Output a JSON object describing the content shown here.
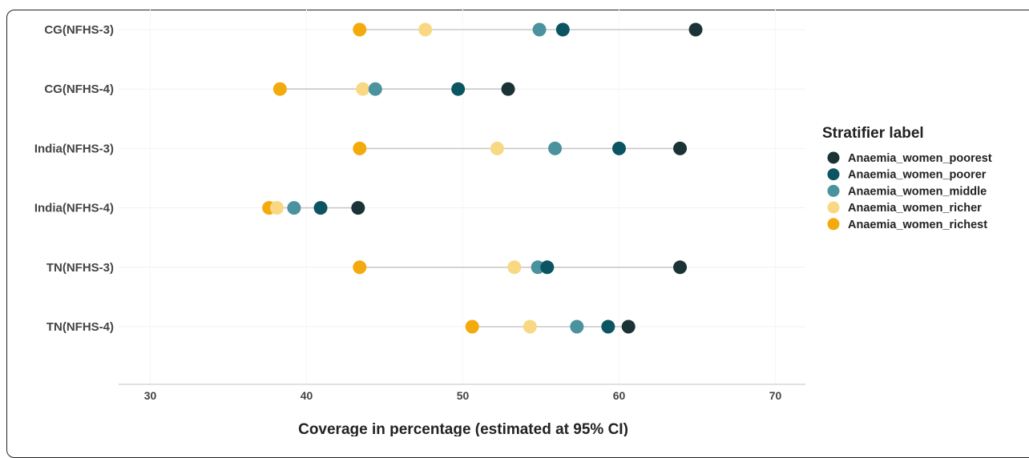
{
  "chart_data": {
    "type": "scatter",
    "subtype": "dumbbell",
    "xlabel": "Coverage in percentage (estimated at 95% CI)",
    "ylabel": "",
    "xlim": [
      28,
      72
    ],
    "xticks": [
      30,
      40,
      50,
      60,
      70
    ],
    "grid": true,
    "legend_title": "Stratifier label",
    "legend_position": "right",
    "categories": [
      "CG(NFHS-3)",
      "CG(NFHS-4)",
      "India(NFHS-3)",
      "India(NFHS-4)",
      "TN(NFHS-3)",
      "TN(NFHS-4)"
    ],
    "series": [
      {
        "name": "Anaemia_women_poorest",
        "color": "#1b3336",
        "values": [
          64.9,
          52.9,
          63.9,
          43.3,
          63.9,
          60.6
        ]
      },
      {
        "name": "Anaemia_women_poorer",
        "color": "#0b5462",
        "values": [
          56.4,
          49.7,
          60.0,
          40.9,
          55.4,
          59.3
        ]
      },
      {
        "name": "Anaemia_women_middle",
        "color": "#4a929e",
        "values": [
          54.9,
          44.4,
          55.9,
          39.2,
          54.8,
          57.3
        ]
      },
      {
        "name": "Anaemia_women_richer",
        "color": "#f9d883",
        "values": [
          47.6,
          43.6,
          52.2,
          38.1,
          53.3,
          54.3
        ]
      },
      {
        "name": "Anaemia_women_richest",
        "color": "#f3aa0c",
        "values": [
          43.4,
          38.3,
          43.4,
          37.6,
          43.4,
          50.6
        ]
      }
    ]
  }
}
